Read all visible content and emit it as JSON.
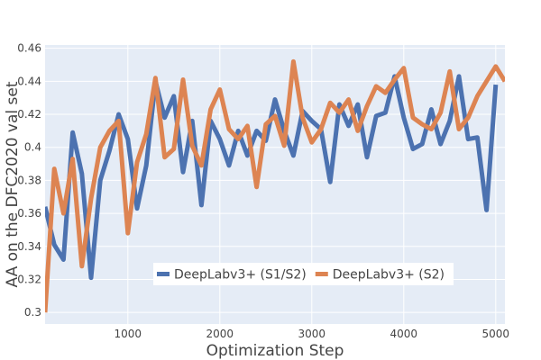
{
  "chart_data": {
    "type": "line",
    "xlabel": "Optimization Step",
    "ylabel": "AA on the DFC2020 val set",
    "xlim": [
      100,
      5100
    ],
    "ylim": [
      0.293,
      0.462
    ],
    "x_ticks": [
      1000,
      2000,
      3000,
      4000,
      5000
    ],
    "x_tick_labels": [
      "1000",
      "2000",
      "3000",
      "4000",
      "5000"
    ],
    "y_ticks": [
      0.3,
      0.32,
      0.34,
      0.36,
      0.38,
      0.4,
      0.42,
      0.44,
      0.46
    ],
    "y_tick_labels": [
      "0.3",
      "0.32",
      "0.34",
      "0.36",
      "0.38",
      "0.4",
      "0.42",
      "0.44",
      "0.46"
    ],
    "grid": true,
    "background": "#e5ecf6",
    "legend_position": "bottom-center",
    "series": [
      {
        "name": "DeepLabv3+ (S1/S2)",
        "color": "#4c72b0",
        "x": [
          100,
          200,
          300,
          400,
          500,
          600,
          700,
          800,
          900,
          1000,
          1100,
          1200,
          1300,
          1400,
          1500,
          1600,
          1700,
          1800,
          1900,
          2000,
          2100,
          2200,
          2300,
          2400,
          2500,
          2600,
          2700,
          2800,
          2900,
          3000,
          3100,
          3200,
          3300,
          3400,
          3500,
          3600,
          3700,
          3800,
          3900,
          4000,
          4100,
          4200,
          4300,
          4400,
          4500,
          4600,
          4700,
          4800,
          4900,
          5000
        ],
        "y": [
          0.364,
          0.341,
          0.332,
          0.409,
          0.384,
          0.321,
          0.38,
          0.398,
          0.42,
          0.405,
          0.363,
          0.389,
          0.44,
          0.418,
          0.431,
          0.385,
          0.416,
          0.365,
          0.416,
          0.405,
          0.389,
          0.41,
          0.395,
          0.41,
          0.404,
          0.429,
          0.41,
          0.395,
          0.422,
          0.416,
          0.411,
          0.379,
          0.426,
          0.413,
          0.426,
          0.394,
          0.419,
          0.421,
          0.443,
          0.418,
          0.399,
          0.402,
          0.423,
          0.402,
          0.416,
          0.443,
          0.405,
          0.406,
          0.362,
          0.438
        ]
      },
      {
        "name": "DeepLabv3+ (S2)",
        "color": "#dd8452",
        "x": [
          100,
          200,
          300,
          400,
          500,
          600,
          700,
          800,
          900,
          1000,
          1100,
          1200,
          1300,
          1400,
          1500,
          1600,
          1700,
          1800,
          1900,
          2000,
          2100,
          2200,
          2300,
          2400,
          2500,
          2600,
          2700,
          2800,
          2900,
          3000,
          3100,
          3200,
          3300,
          3400,
          3500,
          3600,
          3700,
          3800,
          3900,
          4000,
          4100,
          4200,
          4300,
          4400,
          4500,
          4600,
          4700,
          4800,
          4900,
          5000,
          5100
        ],
        "y": [
          0.3,
          0.387,
          0.36,
          0.393,
          0.328,
          0.369,
          0.4,
          0.41,
          0.416,
          0.348,
          0.391,
          0.408,
          0.442,
          0.394,
          0.399,
          0.441,
          0.401,
          0.389,
          0.423,
          0.435,
          0.411,
          0.405,
          0.413,
          0.376,
          0.414,
          0.419,
          0.401,
          0.452,
          0.418,
          0.403,
          0.411,
          0.427,
          0.421,
          0.429,
          0.41,
          0.425,
          0.437,
          0.433,
          0.441,
          0.448,
          0.418,
          0.414,
          0.411,
          0.421,
          0.446,
          0.411,
          0.418,
          0.431,
          0.44,
          0.449,
          0.44
        ]
      }
    ]
  }
}
